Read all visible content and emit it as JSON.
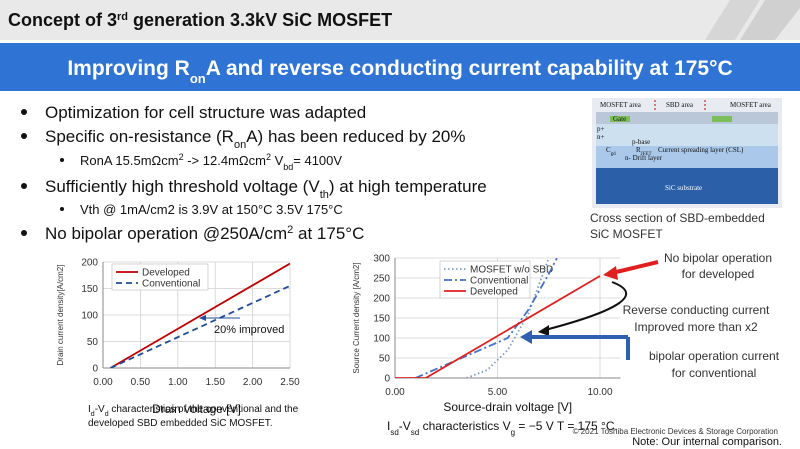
{
  "header": {
    "title": [
      "Concept of 3",
      "rd",
      " generation 3.3kV SiC MOSFET"
    ]
  },
  "banner": [
    "Improving R",
    "on",
    "A and reverse conducting current capability at 175°C"
  ],
  "bullets": [
    [
      "Optimization for cell structure was adapted"
    ],
    [
      "Specific on-resistance (R",
      "on",
      "A) has been reduced by 20%"
    ],
    [
      "RonA 15.5mΩcm",
      "2",
      " -> 12.4mΩcm",
      "2",
      "  V",
      "bd",
      "= 4100V"
    ],
    [
      "Sufficiently high threshold voltage (V",
      "th",
      ") at high temperature"
    ],
    [
      "Vth @ 1mA/cm2 is 3.9V at 150°C 3.5V 175°C"
    ],
    [
      "No bipolar operation @250A/cm",
      "2",
      " at 175°C"
    ]
  ],
  "figure": {
    "labels": [
      "MOSFET area",
      "SBD area",
      "MOSFET area",
      "Gate",
      "p+",
      "n+",
      "p-base",
      "n- Drift layer",
      "Current spreading layer (CSL)",
      "SiC substrate"
    ],
    "cgd": [
      "C",
      "gd"
    ],
    "rjfet": [
      "R",
      "JFET"
    ],
    "caption": [
      "Cross section of SBD-embedded",
      "SiC MOSFET"
    ]
  },
  "chart_data": [
    {
      "type": "line",
      "xlabel": "Drain voltage [V]",
      "ylabel": "Drain current density[A/cm2]",
      "grid": true,
      "legend": "upper left",
      "xlim": [
        0,
        2.5
      ],
      "xticks": [
        {
          "value": 0,
          "label": "0.00"
        },
        {
          "value": 0.5,
          "label": "0.50"
        },
        {
          "value": 1,
          "label": "1.00"
        },
        {
          "value": 1.5,
          "label": "1.50"
        },
        {
          "value": 2,
          "label": "2.00"
        },
        {
          "value": 2.5,
          "label": "2.50"
        }
      ],
      "ylim": [
        0,
        200
      ],
      "yticks": [
        0,
        50,
        100,
        150,
        200
      ],
      "series": [
        {
          "name": "Developed",
          "color": "#c00000",
          "dash": "solid",
          "x": [
            0.1,
            2.5
          ],
          "values": [
            0,
            197
          ]
        },
        {
          "name": "Conventional",
          "color": "#1f4e9c",
          "dash": "dashed",
          "x": [
            0.1,
            2.5
          ],
          "values": [
            0,
            155
          ]
        }
      ],
      "annotation": "20% improved",
      "caption": [
        [
          "I",
          "d",
          "-V",
          "d",
          " characteristics of the conventional and the"
        ],
        [
          "developed SBD embedded SiC MOSFET."
        ]
      ]
    },
    {
      "type": "line",
      "xlabel": "Source-drain voltage [V]",
      "ylabel": "Source  Current density [A/cm2]",
      "grid": true,
      "legend": "upper left",
      "xlim": [
        0,
        11
      ],
      "xticks": [
        {
          "value": 0,
          "label": "0.00"
        },
        {
          "value": 5,
          "label": "5.00"
        },
        {
          "value": 10,
          "label": "10.00"
        }
      ],
      "ylim": [
        0,
        300
      ],
      "yticks": [
        0,
        50,
        100,
        150,
        200,
        250,
        300
      ],
      "series": [
        {
          "name": "MOSFET w/o SBD",
          "color": "#7f9cc0",
          "dash": "dotted",
          "x": [
            3.5,
            4.5,
            5.5,
            6.5,
            7.5
          ],
          "values": [
            0,
            20,
            70,
            160,
            300
          ]
        },
        {
          "name": "Conventional",
          "color": "#4472c4",
          "dash": "dashdot",
          "x": [
            1,
            5.5,
            6.5,
            7.5,
            7.9
          ],
          "values": [
            0,
            100,
            170,
            260,
            300
          ]
        },
        {
          "name": "Developed",
          "color": "#e02020",
          "dash": "solid",
          "x": [
            0,
            1.5,
            10
          ],
          "values": [
            0,
            0,
            255
          ]
        }
      ],
      "annotations": [
        "No bipolar operation",
        "for developed",
        "Reverse conducting current",
        "Improved more than  x2",
        "bipolar operation current",
        "for conventional"
      ],
      "caption": [
        "I",
        "sd",
        "-V",
        "sd",
        " characteristics  V",
        "g",
        " = −5 V T = 175 °C."
      ]
    }
  ],
  "footer": {
    "copyright": "© 2021 Toshiba Electronic Devices & Storage Corporation",
    "note": "Note: Our internal comparison."
  }
}
